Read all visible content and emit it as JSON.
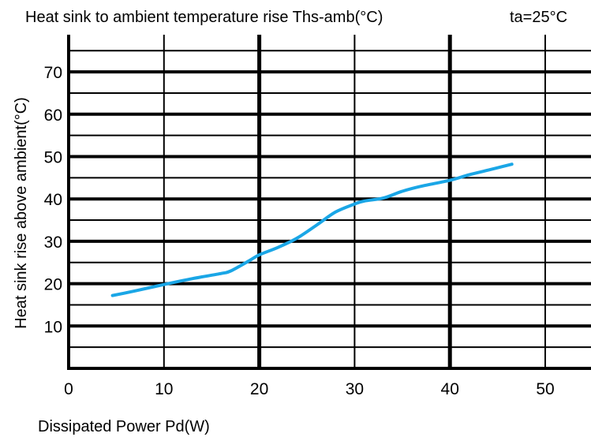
{
  "chart_data": {
    "type": "line",
    "title": "Heat sink to ambient temperature rise Ths-amb(°C)",
    "condition": "ta=25°C",
    "xlabel": "Dissipated Power Pd(W)",
    "ylabel": "Heat sink rise above ambient(°C)",
    "xlim": [
      0,
      50
    ],
    "ylim": [
      0,
      75
    ],
    "x_ticks": [
      "0",
      "10",
      "20",
      "30",
      "40",
      "50"
    ],
    "y_ticks": [
      "10",
      "20",
      "30",
      "40",
      "50",
      "60",
      "70"
    ],
    "grid": true,
    "line_color": "#1aa6e6",
    "series": [
      {
        "x": [
          4.6,
          7,
          10,
          13,
          16,
          17,
          19,
          20,
          22,
          24,
          26,
          28,
          30,
          31,
          33,
          35,
          37,
          40,
          42,
          44,
          46.5
        ],
        "y": [
          17.2,
          18.3,
          19.8,
          21.2,
          22.4,
          23.0,
          25.5,
          26.8,
          28.6,
          30.8,
          33.8,
          36.9,
          38.8,
          39.5,
          40.2,
          41.8,
          43.0,
          44.4,
          45.7,
          46.8,
          48.2
        ]
      }
    ]
  }
}
